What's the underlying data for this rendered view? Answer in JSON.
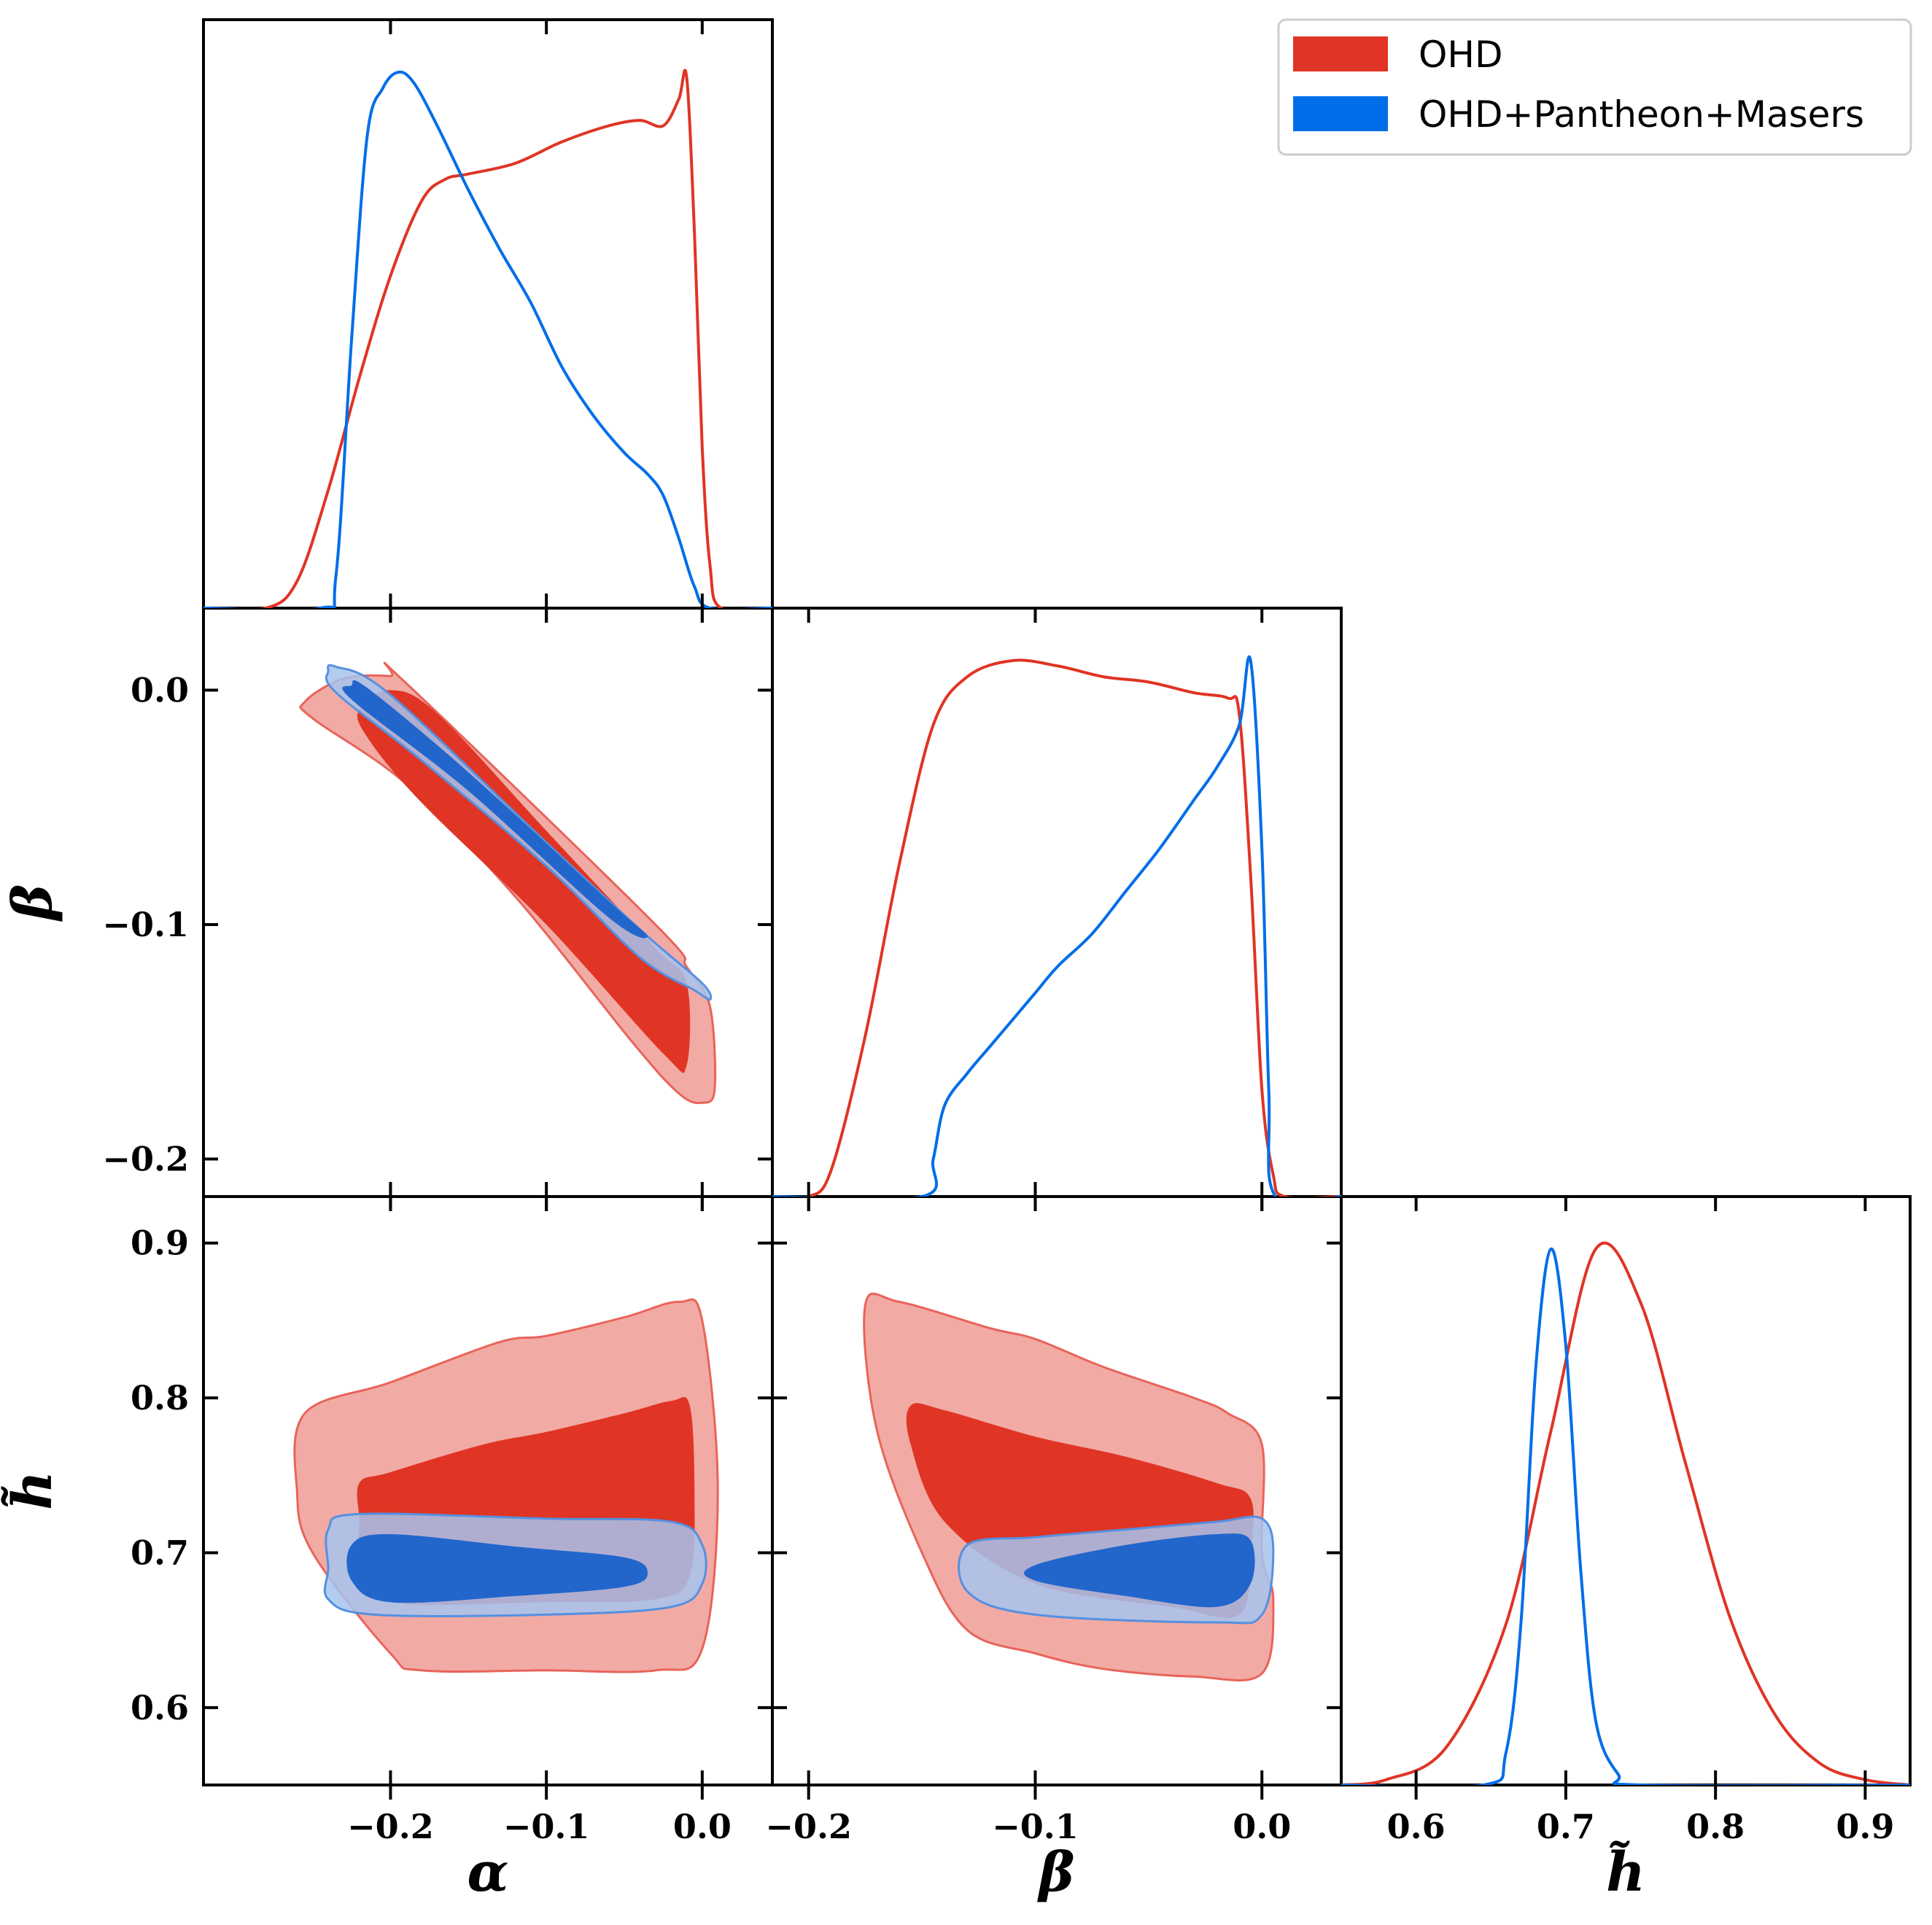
{
  "chart_data": {
    "type": "corner",
    "title": "",
    "legend": {
      "placement": "top-right",
      "entries": [
        {
          "label": "OHD",
          "color": "#e03424"
        },
        {
          "label": "OHD+Pantheon+Masers",
          "color": "#006ee8"
        }
      ]
    },
    "parameters": [
      {
        "symbol": "α",
        "name": "alpha",
        "range": [
          -0.32,
          0.045
        ],
        "ticks": [
          -0.2,
          -0.1,
          0.0
        ],
        "tick_labels": [
          "−0.2",
          "−0.1",
          "0.0"
        ]
      },
      {
        "symbol": "β",
        "name": "beta",
        "range": [
          -0.216,
          0.035
        ],
        "ticks": [
          -0.2,
          -0.1,
          0.0
        ],
        "tick_labels": [
          "−0.2",
          "−0.1",
          "0.0"
        ]
      },
      {
        "symbol": "h̃",
        "name": "h_tilde",
        "range": [
          0.55,
          0.93
        ],
        "ticks": [
          0.6,
          0.7,
          0.8,
          0.9
        ],
        "tick_labels": [
          "0.6",
          "0.7",
          "0.8",
          "0.9"
        ]
      }
    ],
    "marginals": {
      "alpha": {
        "OHD": [
          [
            -0.32,
            0
          ],
          [
            -0.28,
            0
          ],
          [
            -0.26,
            0.05
          ],
          [
            -0.24,
            0.22
          ],
          [
            -0.22,
            0.43
          ],
          [
            -0.2,
            0.62
          ],
          [
            -0.18,
            0.76
          ],
          [
            -0.165,
            0.8
          ],
          [
            -0.15,
            0.81
          ],
          [
            -0.12,
            0.83
          ],
          [
            -0.09,
            0.87
          ],
          [
            -0.06,
            0.9
          ],
          [
            -0.04,
            0.91
          ],
          [
            -0.025,
            0.9
          ],
          [
            -0.015,
            0.95
          ],
          [
            -0.01,
            0.99
          ],
          [
            -0.005,
            0.7
          ],
          [
            0,
            0.3
          ],
          [
            0.005,
            0.08
          ],
          [
            0.012,
            0
          ],
          [
            0.045,
            0
          ]
        ],
        "OHD+Pantheon+Masers": [
          [
            -0.32,
            0
          ],
          [
            -0.245,
            0
          ],
          [
            -0.235,
            0.06
          ],
          [
            -0.225,
            0.5
          ],
          [
            -0.215,
            0.88
          ],
          [
            -0.205,
            0.97
          ],
          [
            -0.195,
            1.0
          ],
          [
            -0.185,
            0.98
          ],
          [
            -0.17,
            0.9
          ],
          [
            -0.15,
            0.78
          ],
          [
            -0.13,
            0.67
          ],
          [
            -0.11,
            0.57
          ],
          [
            -0.09,
            0.45
          ],
          [
            -0.07,
            0.36
          ],
          [
            -0.05,
            0.29
          ],
          [
            -0.035,
            0.25
          ],
          [
            -0.025,
            0.21
          ],
          [
            -0.015,
            0.13
          ],
          [
            -0.005,
            0.04
          ],
          [
            0.005,
            0
          ],
          [
            0.045,
            0
          ]
        ]
      },
      "beta": {
        "OHD": [
          [
            -0.216,
            0
          ],
          [
            -0.2,
            0
          ],
          [
            -0.19,
            0.05
          ],
          [
            -0.175,
            0.3
          ],
          [
            -0.16,
            0.62
          ],
          [
            -0.145,
            0.88
          ],
          [
            -0.13,
            0.97
          ],
          [
            -0.11,
            1.0
          ],
          [
            -0.09,
            0.99
          ],
          [
            -0.07,
            0.97
          ],
          [
            -0.05,
            0.96
          ],
          [
            -0.03,
            0.94
          ],
          [
            -0.015,
            0.93
          ],
          [
            -0.01,
            0.9
          ],
          [
            -0.005,
            0.6
          ],
          [
            0,
            0.2
          ],
          [
            0.005,
            0.04
          ],
          [
            0.01,
            0
          ],
          [
            0.035,
            0
          ]
        ],
        "OHD+Pantheon+Masers": [
          [
            -0.216,
            0
          ],
          [
            -0.15,
            0
          ],
          [
            -0.145,
            0.07
          ],
          [
            -0.14,
            0.17
          ],
          [
            -0.13,
            0.23
          ],
          [
            -0.12,
            0.28
          ],
          [
            -0.11,
            0.33
          ],
          [
            -0.1,
            0.38
          ],
          [
            -0.09,
            0.43
          ],
          [
            -0.075,
            0.49
          ],
          [
            -0.06,
            0.57
          ],
          [
            -0.045,
            0.65
          ],
          [
            -0.03,
            0.74
          ],
          [
            -0.02,
            0.8
          ],
          [
            -0.01,
            0.88
          ],
          [
            -0.005,
            1.0
          ],
          [
            0,
            0.65
          ],
          [
            0.003,
            0.2
          ],
          [
            0.006,
            0
          ],
          [
            0.035,
            0
          ]
        ]
      },
      "h_tilde": {
        "OHD": [
          [
            0.55,
            0
          ],
          [
            0.58,
            0.01
          ],
          [
            0.62,
            0.07
          ],
          [
            0.66,
            0.3
          ],
          [
            0.69,
            0.66
          ],
          [
            0.72,
            1.0
          ],
          [
            0.75,
            0.9
          ],
          [
            0.78,
            0.6
          ],
          [
            0.81,
            0.31
          ],
          [
            0.84,
            0.13
          ],
          [
            0.87,
            0.04
          ],
          [
            0.9,
            0.01
          ],
          [
            0.93,
            0
          ]
        ],
        "OHD+Pantheon+Masers": [
          [
            0.55,
            0
          ],
          [
            0.645,
            0
          ],
          [
            0.66,
            0.06
          ],
          [
            0.67,
            0.3
          ],
          [
            0.68,
            0.78
          ],
          [
            0.69,
            1.0
          ],
          [
            0.7,
            0.82
          ],
          [
            0.71,
            0.4
          ],
          [
            0.72,
            0.12
          ],
          [
            0.735,
            0.02
          ],
          [
            0.75,
            0
          ],
          [
            0.93,
            0
          ]
        ]
      }
    },
    "contours": {
      "beta_vs_alpha": {
        "OHD_95": [
          [
            -0.255,
            -0.005
          ],
          [
            -0.23,
            0.005
          ],
          [
            -0.2,
            0.006
          ],
          [
            -0.19,
            0.003
          ],
          [
            -0.03,
            -0.1
          ],
          [
            -0.01,
            -0.118
          ],
          [
            0.005,
            -0.135
          ],
          [
            0.008,
            -0.17
          ],
          [
            0.0,
            -0.176
          ],
          [
            -0.015,
            -0.172
          ],
          [
            -0.045,
            -0.15
          ],
          [
            -0.12,
            -0.088
          ],
          [
            -0.19,
            -0.04
          ],
          [
            -0.25,
            -0.012
          ]
        ],
        "OHD_68": [
          [
            -0.22,
            -0.008
          ],
          [
            -0.2,
            0.0
          ],
          [
            -0.17,
            -0.01
          ],
          [
            -0.1,
            -0.06
          ],
          [
            -0.03,
            -0.11
          ],
          [
            -0.01,
            -0.125
          ],
          [
            -0.01,
            -0.16
          ],
          [
            -0.025,
            -0.155
          ],
          [
            -0.1,
            -0.1
          ],
          [
            -0.18,
            -0.048
          ],
          [
            -0.215,
            -0.02
          ]
        ],
        "Comb_95": [
          [
            -0.24,
            0.008
          ],
          [
            -0.235,
            0.01
          ],
          [
            -0.2,
            -0.002
          ],
          [
            -0.1,
            -0.065
          ],
          [
            -0.035,
            -0.105
          ],
          [
            0.0,
            -0.125
          ],
          [
            0.005,
            -0.132
          ],
          [
            -0.005,
            -0.128
          ],
          [
            -0.04,
            -0.114
          ],
          [
            -0.1,
            -0.075
          ],
          [
            -0.18,
            -0.03
          ],
          [
            -0.235,
            -0.001
          ]
        ],
        "Comb_68": [
          [
            -0.225,
            0.002
          ],
          [
            -0.215,
            0.001
          ],
          [
            -0.15,
            -0.035
          ],
          [
            -0.06,
            -0.09
          ],
          [
            -0.035,
            -0.105
          ],
          [
            -0.06,
            -0.097
          ],
          [
            -0.15,
            -0.043
          ],
          [
            -0.225,
            -0.004
          ]
        ]
      },
      "h_vs_alpha": {
        "OHD_95": [
          [
            -0.255,
            0.79
          ],
          [
            -0.2,
            0.81
          ],
          [
            -0.13,
            0.836
          ],
          [
            -0.1,
            0.84
          ],
          [
            -0.05,
            0.852
          ],
          [
            -0.015,
            0.862
          ],
          [
            0.0,
            0.85
          ],
          [
            0.01,
            0.74
          ],
          [
            0.0,
            0.638
          ],
          [
            -0.03,
            0.624
          ],
          [
            -0.1,
            0.624
          ],
          [
            -0.18,
            0.624
          ],
          [
            -0.2,
            0.635
          ],
          [
            -0.25,
            0.7
          ],
          [
            -0.26,
            0.74
          ]
        ],
        "OHD_68": [
          [
            -0.22,
            0.72
          ],
          [
            -0.22,
            0.745
          ],
          [
            -0.2,
            0.752
          ],
          [
            -0.14,
            0.77
          ],
          [
            -0.1,
            0.778
          ],
          [
            -0.05,
            0.79
          ],
          [
            -0.02,
            0.798
          ],
          [
            -0.008,
            0.795
          ],
          [
            -0.005,
            0.74
          ],
          [
            -0.008,
            0.685
          ],
          [
            -0.03,
            0.67
          ],
          [
            -0.1,
            0.668
          ],
          [
            -0.2,
            0.668
          ],
          [
            -0.22,
            0.69
          ]
        ],
        "Comb_95": [
          [
            -0.24,
            0.715
          ],
          [
            -0.22,
            0.725
          ],
          [
            -0.1,
            0.722
          ],
          [
            -0.02,
            0.72
          ],
          [
            0.0,
            0.705
          ],
          [
            0.0,
            0.68
          ],
          [
            -0.02,
            0.665
          ],
          [
            -0.1,
            0.66
          ],
          [
            -0.21,
            0.66
          ],
          [
            -0.24,
            0.67
          ],
          [
            -0.24,
            0.69
          ]
        ],
        "Comb_68": [
          [
            -0.225,
            0.705
          ],
          [
            -0.2,
            0.712
          ],
          [
            -0.12,
            0.704
          ],
          [
            -0.05,
            0.697
          ],
          [
            -0.035,
            0.687
          ],
          [
            -0.05,
            0.678
          ],
          [
            -0.12,
            0.672
          ],
          [
            -0.2,
            0.668
          ],
          [
            -0.225,
            0.682
          ]
        ]
      },
      "h_vs_beta": {
        "OHD_95": [
          [
            -0.175,
            0.86
          ],
          [
            -0.16,
            0.862
          ],
          [
            -0.12,
            0.845
          ],
          [
            -0.1,
            0.838
          ],
          [
            -0.07,
            0.82
          ],
          [
            -0.03,
            0.8
          ],
          [
            -0.015,
            0.79
          ],
          [
            0.0,
            0.77
          ],
          [
            0.0,
            0.7
          ],
          [
            0.005,
            0.67
          ],
          [
            0.0,
            0.622
          ],
          [
            -0.03,
            0.62
          ],
          [
            -0.07,
            0.625
          ],
          [
            -0.1,
            0.635
          ],
          [
            -0.13,
            0.65
          ],
          [
            -0.15,
            0.7
          ],
          [
            -0.17,
            0.78
          ]
        ],
        "OHD_68": [
          [
            -0.155,
            0.795
          ],
          [
            -0.14,
            0.792
          ],
          [
            -0.1,
            0.775
          ],
          [
            -0.06,
            0.762
          ],
          [
            -0.02,
            0.745
          ],
          [
            -0.005,
            0.735
          ],
          [
            -0.005,
            0.7
          ],
          [
            -0.01,
            0.66
          ],
          [
            -0.04,
            0.665
          ],
          [
            -0.1,
            0.68
          ],
          [
            -0.14,
            0.72
          ],
          [
            -0.155,
            0.77
          ]
        ],
        "Comb_95": [
          [
            -0.13,
            0.705
          ],
          [
            -0.1,
            0.71
          ],
          [
            -0.06,
            0.715
          ],
          [
            -0.02,
            0.72
          ],
          [
            0.0,
            0.722
          ],
          [
            0.005,
            0.7
          ],
          [
            0.0,
            0.66
          ],
          [
            -0.02,
            0.655
          ],
          [
            -0.1,
            0.66
          ],
          [
            -0.13,
            0.675
          ]
        ],
        "Comb_68": [
          [
            -0.1,
            0.692
          ],
          [
            -0.06,
            0.705
          ],
          [
            -0.02,
            0.712
          ],
          [
            -0.005,
            0.708
          ],
          [
            -0.005,
            0.68
          ],
          [
            -0.02,
            0.665
          ],
          [
            -0.06,
            0.672
          ],
          [
            -0.1,
            0.682
          ]
        ]
      }
    }
  },
  "colors": {
    "ohd_line": "#e03424",
    "ohd_inner": "#e03424",
    "ohd_outer": "#f2aaa4",
    "ohd_outer_edge": "#e8645a",
    "comb_line": "#006ee8",
    "comb_inner": "#2266cc",
    "comb_outer": "#a6c4ee",
    "comb_outer_edge": "#5590e0"
  }
}
